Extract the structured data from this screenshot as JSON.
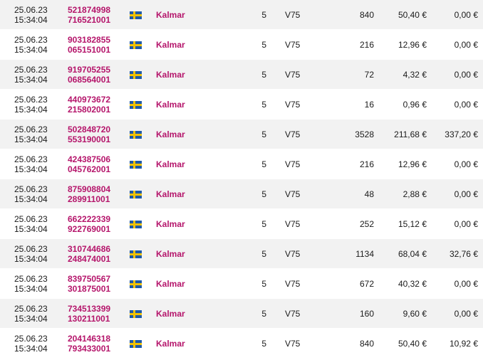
{
  "rows": [
    {
      "date": "25.06.23",
      "time": "15:34:04",
      "id1": "521874998",
      "id2": "716521001",
      "flag": "sweden-flag-icon",
      "track": "Kalmar",
      "legs": "5",
      "game": "V75",
      "stake": "840",
      "cost": "50,40 €",
      "win": "0,00 €"
    },
    {
      "date": "25.06.23",
      "time": "15:34:04",
      "id1": "903182855",
      "id2": "065151001",
      "flag": "sweden-flag-icon",
      "track": "Kalmar",
      "legs": "5",
      "game": "V75",
      "stake": "216",
      "cost": "12,96 €",
      "win": "0,00 €"
    },
    {
      "date": "25.06.23",
      "time": "15:34:04",
      "id1": "919705255",
      "id2": "068564001",
      "flag": "sweden-flag-icon",
      "track": "Kalmar",
      "legs": "5",
      "game": "V75",
      "stake": "72",
      "cost": "4,32 €",
      "win": "0,00 €"
    },
    {
      "date": "25.06.23",
      "time": "15:34:04",
      "id1": "440973672",
      "id2": "215802001",
      "flag": "sweden-flag-icon",
      "track": "Kalmar",
      "legs": "5",
      "game": "V75",
      "stake": "16",
      "cost": "0,96 €",
      "win": "0,00 €"
    },
    {
      "date": "25.06.23",
      "time": "15:34:04",
      "id1": "502848720",
      "id2": "553190001",
      "flag": "sweden-flag-icon",
      "track": "Kalmar",
      "legs": "5",
      "game": "V75",
      "stake": "3528",
      "cost": "211,68 €",
      "win": "337,20 €"
    },
    {
      "date": "25.06.23",
      "time": "15:34:04",
      "id1": "424387506",
      "id2": "045762001",
      "flag": "sweden-flag-icon",
      "track": "Kalmar",
      "legs": "5",
      "game": "V75",
      "stake": "216",
      "cost": "12,96 €",
      "win": "0,00 €"
    },
    {
      "date": "25.06.23",
      "time": "15:34:04",
      "id1": "875908804",
      "id2": "289911001",
      "flag": "sweden-flag-icon",
      "track": "Kalmar",
      "legs": "5",
      "game": "V75",
      "stake": "48",
      "cost": "2,88 €",
      "win": "0,00 €"
    },
    {
      "date": "25.06.23",
      "time": "15:34:04",
      "id1": "662222339",
      "id2": "922769001",
      "flag": "sweden-flag-icon",
      "track": "Kalmar",
      "legs": "5",
      "game": "V75",
      "stake": "252",
      "cost": "15,12 €",
      "win": "0,00 €"
    },
    {
      "date": "25.06.23",
      "time": "15:34:04",
      "id1": "310744686",
      "id2": "248474001",
      "flag": "sweden-flag-icon",
      "track": "Kalmar",
      "legs": "5",
      "game": "V75",
      "stake": "1134",
      "cost": "68,04 €",
      "win": "32,76 €"
    },
    {
      "date": "25.06.23",
      "time": "15:34:04",
      "id1": "839750567",
      "id2": "301875001",
      "flag": "sweden-flag-icon",
      "track": "Kalmar",
      "legs": "5",
      "game": "V75",
      "stake": "672",
      "cost": "40,32 €",
      "win": "0,00 €"
    },
    {
      "date": "25.06.23",
      "time": "15:34:04",
      "id1": "734513399",
      "id2": "130211001",
      "flag": "sweden-flag-icon",
      "track": "Kalmar",
      "legs": "5",
      "game": "V75",
      "stake": "160",
      "cost": "9,60 €",
      "win": "0,00 €"
    },
    {
      "date": "25.06.23",
      "time": "15:34:04",
      "id1": "204146318",
      "id2": "793433001",
      "flag": "sweden-flag-icon",
      "track": "Kalmar",
      "legs": "5",
      "game": "V75",
      "stake": "840",
      "cost": "50,40 €",
      "win": "10,92 €"
    }
  ],
  "colors": {
    "link": "#b5156b",
    "row_alt": "#f2f2f2"
  }
}
